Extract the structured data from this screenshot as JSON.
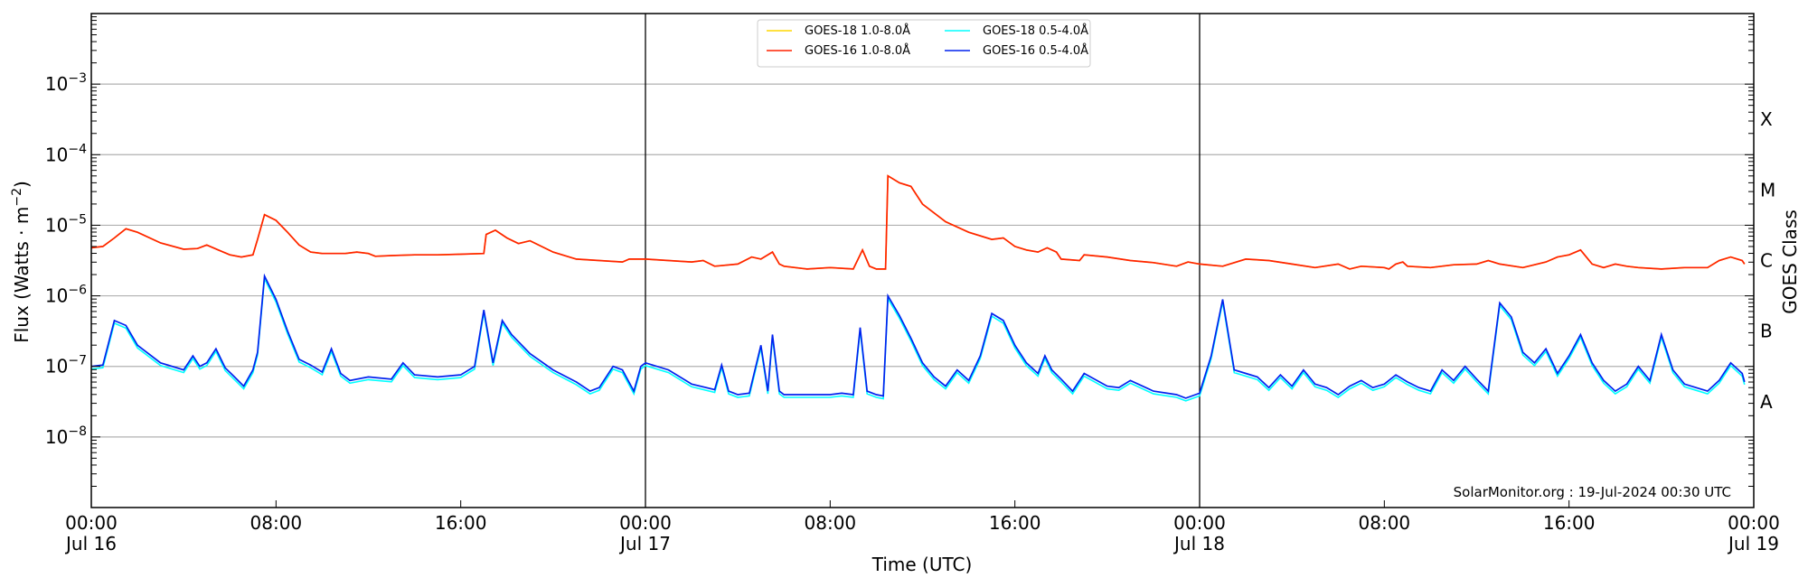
{
  "chart_data": {
    "type": "line",
    "title": "",
    "xlabel": "Time (UTC)",
    "ylabel": "Flux (Watts · m⁻²)",
    "ylabel_right": "GOES Class",
    "yscale": "log",
    "ylim": [
      1e-09,
      0.01
    ],
    "xlim_hours": [
      0,
      72
    ],
    "grid": "horizontal at decades",
    "legend_position": "upper center",
    "credit": "SolarMonitor.org : 19-Jul-2024 00:30 UTC",
    "y_ticks": [
      {
        "exp": -3,
        "label_base": "10",
        "label_exp": "−3"
      },
      {
        "exp": -4,
        "label_base": "10",
        "label_exp": "−4"
      },
      {
        "exp": -5,
        "label_base": "10",
        "label_exp": "−5"
      },
      {
        "exp": -6,
        "label_base": "10",
        "label_exp": "−6"
      },
      {
        "exp": -7,
        "label_base": "10",
        "label_exp": "−7"
      },
      {
        "exp": -8,
        "label_base": "10",
        "label_exp": "−8"
      }
    ],
    "goes_classes": [
      {
        "label": "X",
        "log": -3.5
      },
      {
        "label": "M",
        "log": -4.5
      },
      {
        "label": "C",
        "log": -5.5
      },
      {
        "label": "B",
        "log": -6.5
      },
      {
        "label": "A",
        "log": -7.5
      }
    ],
    "x_ticks": [
      {
        "hour": 0,
        "time": "00:00",
        "date": "Jul 16"
      },
      {
        "hour": 8,
        "time": "08:00",
        "date": ""
      },
      {
        "hour": 16,
        "time": "16:00",
        "date": ""
      },
      {
        "hour": 24,
        "time": "00:00",
        "date": "Jul 17"
      },
      {
        "hour": 32,
        "time": "08:00",
        "date": ""
      },
      {
        "hour": 40,
        "time": "16:00",
        "date": ""
      },
      {
        "hour": 48,
        "time": "00:00",
        "date": "Jul 18"
      },
      {
        "hour": 56,
        "time": "08:00",
        "date": ""
      },
      {
        "hour": 64,
        "time": "16:00",
        "date": ""
      },
      {
        "hour": 72,
        "time": "00:00",
        "date": "Jul 19"
      }
    ],
    "day_boundaries_hours": [
      24,
      48
    ],
    "legend": [
      {
        "label": "GOES-18 1.0-8.0Å",
        "color": "#ffd700"
      },
      {
        "label": "GOES-18 0.5-4.0Å",
        "color": "#00ffff"
      },
      {
        "label": "GOES-16 1.0-8.0Å",
        "color": "#ff2200"
      },
      {
        "label": "GOES-16 0.5-4.0Å",
        "color": "#0022ee"
      }
    ],
    "series": [
      {
        "name": "GOES-16 1.0-8.0Å",
        "color": "#ff2200",
        "unit": "log10(W/m2) vs hours since Jul 16 00:00",
        "points": [
          [
            0,
            -5.32
          ],
          [
            0.5,
            -5.3
          ],
          [
            1,
            -5.18
          ],
          [
            1.5,
            -5.05
          ],
          [
            2,
            -5.1
          ],
          [
            3,
            -5.25
          ],
          [
            4,
            -5.34
          ],
          [
            4.6,
            -5.33
          ],
          [
            5,
            -5.28
          ],
          [
            5.5,
            -5.35
          ],
          [
            6,
            -5.42
          ],
          [
            6.5,
            -5.45
          ],
          [
            7,
            -5.42
          ],
          [
            7.2,
            -5.2
          ],
          [
            7.5,
            -4.85
          ],
          [
            8,
            -4.93
          ],
          [
            8.5,
            -5.1
          ],
          [
            9,
            -5.28
          ],
          [
            9.5,
            -5.38
          ],
          [
            10,
            -5.4
          ],
          [
            11,
            -5.4
          ],
          [
            11.5,
            -5.38
          ],
          [
            12,
            -5.4
          ],
          [
            12.3,
            -5.44
          ],
          [
            13,
            -5.43
          ],
          [
            14,
            -5.42
          ],
          [
            15,
            -5.42
          ],
          [
            16,
            -5.41
          ],
          [
            17,
            -5.4
          ],
          [
            17.1,
            -5.13
          ],
          [
            17.5,
            -5.07
          ],
          [
            18,
            -5.18
          ],
          [
            18.5,
            -5.26
          ],
          [
            19,
            -5.22
          ],
          [
            20,
            -5.38
          ],
          [
            21,
            -5.48
          ],
          [
            22,
            -5.5
          ],
          [
            23,
            -5.52
          ],
          [
            23.3,
            -5.48
          ],
          [
            24,
            -5.48
          ],
          [
            25,
            -5.5
          ],
          [
            26,
            -5.52
          ],
          [
            26.5,
            -5.5
          ],
          [
            27,
            -5.58
          ],
          [
            28,
            -5.55
          ],
          [
            28.6,
            -5.45
          ],
          [
            29,
            -5.48
          ],
          [
            29.5,
            -5.38
          ],
          [
            29.8,
            -5.55
          ],
          [
            30,
            -5.58
          ],
          [
            31,
            -5.62
          ],
          [
            32,
            -5.6
          ],
          [
            33,
            -5.62
          ],
          [
            33.4,
            -5.35
          ],
          [
            33.7,
            -5.58
          ],
          [
            34,
            -5.62
          ],
          [
            34.4,
            -5.62
          ],
          [
            34.5,
            -4.3
          ],
          [
            35,
            -4.4
          ],
          [
            35.5,
            -4.45
          ],
          [
            36,
            -4.7
          ],
          [
            37,
            -4.95
          ],
          [
            38,
            -5.1
          ],
          [
            39,
            -5.2
          ],
          [
            39.5,
            -5.18
          ],
          [
            40,
            -5.3
          ],
          [
            40.5,
            -5.35
          ],
          [
            41,
            -5.38
          ],
          [
            41.4,
            -5.32
          ],
          [
            41.8,
            -5.38
          ],
          [
            42,
            -5.48
          ],
          [
            42.8,
            -5.5
          ],
          [
            43,
            -5.42
          ],
          [
            44,
            -5.45
          ],
          [
            45,
            -5.5
          ],
          [
            46,
            -5.53
          ],
          [
            47,
            -5.58
          ],
          [
            47.5,
            -5.52
          ],
          [
            48,
            -5.55
          ],
          [
            49,
            -5.58
          ],
          [
            50,
            -5.48
          ],
          [
            51,
            -5.5
          ],
          [
            52,
            -5.55
          ],
          [
            53,
            -5.6
          ],
          [
            54,
            -5.55
          ],
          [
            54.5,
            -5.62
          ],
          [
            55,
            -5.58
          ],
          [
            56,
            -5.6
          ],
          [
            56.2,
            -5.62
          ],
          [
            56.5,
            -5.55
          ],
          [
            56.8,
            -5.52
          ],
          [
            57,
            -5.58
          ],
          [
            58,
            -5.6
          ],
          [
            59,
            -5.56
          ],
          [
            60,
            -5.55
          ],
          [
            60.5,
            -5.5
          ],
          [
            61,
            -5.55
          ],
          [
            62,
            -5.6
          ],
          [
            63,
            -5.52
          ],
          [
            63.5,
            -5.45
          ],
          [
            64,
            -5.42
          ],
          [
            64.5,
            -5.35
          ],
          [
            65,
            -5.55
          ],
          [
            65.5,
            -5.6
          ],
          [
            66,
            -5.55
          ],
          [
            66.5,
            -5.58
          ],
          [
            67,
            -5.6
          ],
          [
            68,
            -5.62
          ],
          [
            69,
            -5.6
          ],
          [
            70,
            -5.6
          ],
          [
            70.5,
            -5.5
          ],
          [
            71,
            -5.45
          ],
          [
            71.5,
            -5.5
          ],
          [
            71.6,
            -5.55
          ]
        ]
      },
      {
        "name": "GOES-16 0.5-4.0Å",
        "color": "#0022ee",
        "unit": "log10(W/m2) vs hours since Jul 16 00:00",
        "points": [
          [
            0,
            -7
          ],
          [
            0.5,
            -6.98
          ],
          [
            1,
            -6.35
          ],
          [
            1.5,
            -6.42
          ],
          [
            2,
            -6.7
          ],
          [
            3,
            -6.95
          ],
          [
            4,
            -7.05
          ],
          [
            4.4,
            -6.85
          ],
          [
            4.7,
            -7.0
          ],
          [
            5,
            -6.95
          ],
          [
            5.4,
            -6.75
          ],
          [
            5.8,
            -7.02
          ],
          [
            6.2,
            -7.15
          ],
          [
            6.6,
            -7.28
          ],
          [
            7,
            -7.05
          ],
          [
            7.2,
            -6.8
          ],
          [
            7.5,
            -5.72
          ],
          [
            8,
            -6.05
          ],
          [
            8.5,
            -6.5
          ],
          [
            9,
            -6.9
          ],
          [
            9.5,
            -6.98
          ],
          [
            10,
            -7.08
          ],
          [
            10.4,
            -6.75
          ],
          [
            10.8,
            -7.1
          ],
          [
            11.2,
            -7.2
          ],
          [
            12,
            -7.15
          ],
          [
            13,
            -7.18
          ],
          [
            13.5,
            -6.95
          ],
          [
            14,
            -7.12
          ],
          [
            15,
            -7.15
          ],
          [
            16,
            -7.12
          ],
          [
            16.6,
            -7.0
          ],
          [
            17,
            -6.2
          ],
          [
            17.4,
            -6.95
          ],
          [
            17.8,
            -6.35
          ],
          [
            18.2,
            -6.55
          ],
          [
            19,
            -6.82
          ],
          [
            20,
            -7.05
          ],
          [
            21,
            -7.22
          ],
          [
            21.6,
            -7.35
          ],
          [
            22,
            -7.3
          ],
          [
            22.6,
            -7.0
          ],
          [
            23,
            -7.05
          ],
          [
            23.5,
            -7.35
          ],
          [
            23.8,
            -7.0
          ],
          [
            24,
            -6.95
          ],
          [
            25,
            -7.05
          ],
          [
            26,
            -7.25
          ],
          [
            27,
            -7.33
          ],
          [
            27.3,
            -6.98
          ],
          [
            27.6,
            -7.35
          ],
          [
            28,
            -7.4
          ],
          [
            28.5,
            -7.38
          ],
          [
            29,
            -6.7
          ],
          [
            29.3,
            -7.35
          ],
          [
            29.5,
            -6.55
          ],
          [
            29.8,
            -7.35
          ],
          [
            30,
            -7.4
          ],
          [
            31,
            -7.4
          ],
          [
            32,
            -7.4
          ],
          [
            32.5,
            -7.38
          ],
          [
            33,
            -7.4
          ],
          [
            33.3,
            -6.45
          ],
          [
            33.6,
            -7.35
          ],
          [
            34,
            -7.4
          ],
          [
            34.3,
            -7.42
          ],
          [
            34.5,
            -6.0
          ],
          [
            35,
            -6.28
          ],
          [
            35.5,
            -6.6
          ],
          [
            36,
            -6.95
          ],
          [
            36.5,
            -7.15
          ],
          [
            37,
            -7.28
          ],
          [
            37.5,
            -7.05
          ],
          [
            38,
            -7.2
          ],
          [
            38.5,
            -6.85
          ],
          [
            39,
            -6.25
          ],
          [
            39.5,
            -6.35
          ],
          [
            40,
            -6.7
          ],
          [
            40.5,
            -6.95
          ],
          [
            41,
            -7.1
          ],
          [
            41.3,
            -6.85
          ],
          [
            41.6,
            -7.05
          ],
          [
            42,
            -7.18
          ],
          [
            42.5,
            -7.35
          ],
          [
            43,
            -7.1
          ],
          [
            44,
            -7.28
          ],
          [
            44.5,
            -7.3
          ],
          [
            45,
            -7.2
          ],
          [
            46,
            -7.35
          ],
          [
            47,
            -7.4
          ],
          [
            47.4,
            -7.45
          ],
          [
            48,
            -7.38
          ],
          [
            48.5,
            -6.85
          ],
          [
            49,
            -6.05
          ],
          [
            49.5,
            -7.05
          ],
          [
            50,
            -7.1
          ],
          [
            50.5,
            -7.15
          ],
          [
            51,
            -7.3
          ],
          [
            51.5,
            -7.12
          ],
          [
            52,
            -7.28
          ],
          [
            52.5,
            -7.05
          ],
          [
            53,
            -7.25
          ],
          [
            53.5,
            -7.3
          ],
          [
            54,
            -7.4
          ],
          [
            54.5,
            -7.28
          ],
          [
            55,
            -7.2
          ],
          [
            55.5,
            -7.3
          ],
          [
            56,
            -7.25
          ],
          [
            56.5,
            -7.12
          ],
          [
            57,
            -7.22
          ],
          [
            57.5,
            -7.3
          ],
          [
            58,
            -7.35
          ],
          [
            58.5,
            -7.05
          ],
          [
            59,
            -7.2
          ],
          [
            59.5,
            -7.0
          ],
          [
            60,
            -7.18
          ],
          [
            60.5,
            -7.35
          ],
          [
            61,
            -6.1
          ],
          [
            61.5,
            -6.3
          ],
          [
            62,
            -6.8
          ],
          [
            62.5,
            -6.95
          ],
          [
            63,
            -6.75
          ],
          [
            63.5,
            -7.1
          ],
          [
            64,
            -6.85
          ],
          [
            64.5,
            -6.55
          ],
          [
            65,
            -6.95
          ],
          [
            65.5,
            -7.2
          ],
          [
            66,
            -7.35
          ],
          [
            66.5,
            -7.25
          ],
          [
            67,
            -7.0
          ],
          [
            67.5,
            -7.2
          ],
          [
            68,
            -6.55
          ],
          [
            68.5,
            -7.05
          ],
          [
            69,
            -7.25
          ],
          [
            69.5,
            -7.3
          ],
          [
            70,
            -7.35
          ],
          [
            70.5,
            -7.2
          ],
          [
            71,
            -6.95
          ],
          [
            71.5,
            -7.1
          ],
          [
            71.6,
            -7.22
          ]
        ]
      }
    ]
  }
}
